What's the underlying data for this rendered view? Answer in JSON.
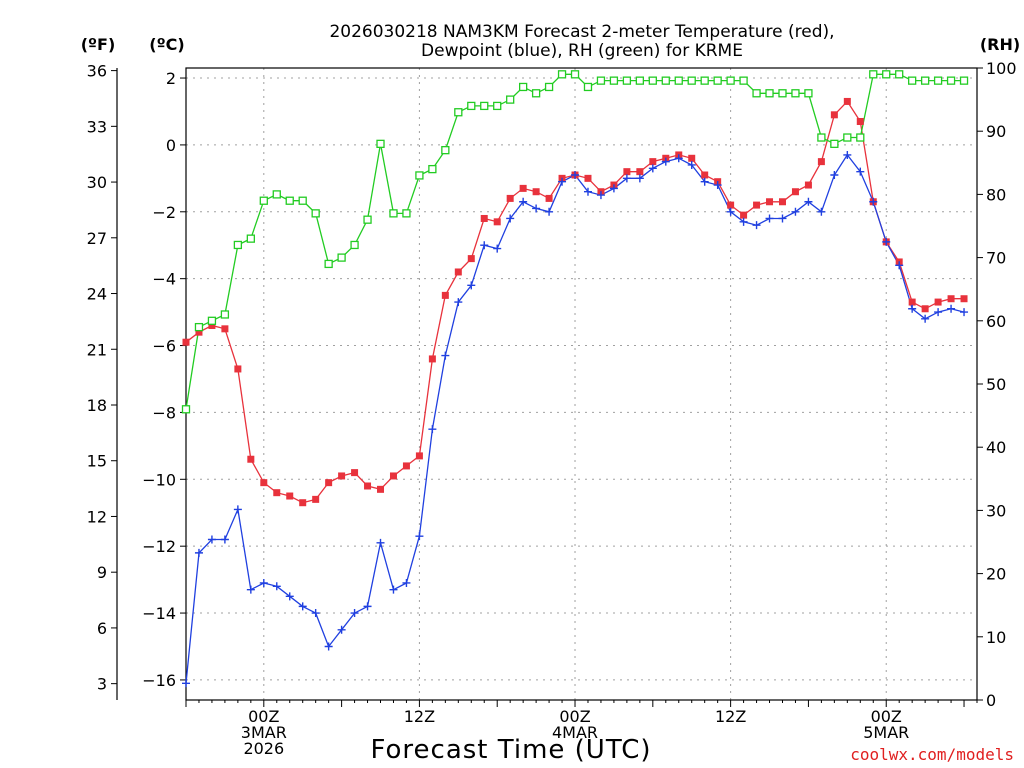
{
  "chart_data": {
    "type": "line",
    "title_line1": "2026030218 NAM3KM Forecast 2-meter Temperature (red),",
    "title_line2": "Dewpoint (blue), RH (green) for KRME",
    "xlabel": "Forecast Time (UTC)",
    "credit": "coolwx.com/models",
    "units": {
      "left_f": "(ºF)",
      "left_c": "(ºC)",
      "right": "(RH)"
    },
    "hours": {
      "start": 0,
      "end": 61
    },
    "ylim_c": [
      -16.6,
      2.3
    ],
    "ylim_rh": [
      0,
      100
    ],
    "f_ticks": [
      3,
      6,
      9,
      12,
      15,
      18,
      21,
      24,
      27,
      30,
      33,
      36
    ],
    "c_ticks": [
      -16,
      -14,
      -12,
      -10,
      -8,
      -6,
      -4,
      -2,
      0,
      2
    ],
    "rh_ticks": [
      0,
      10,
      20,
      30,
      40,
      50,
      60,
      70,
      80,
      90,
      100
    ],
    "x_ticks": [
      {
        "hour": 6,
        "lines": [
          "00Z",
          "3MAR",
          "2026"
        ]
      },
      {
        "hour": 18,
        "lines": [
          "12Z"
        ]
      },
      {
        "hour": 30,
        "lines": [
          "00Z",
          "4MAR"
        ]
      },
      {
        "hour": 42,
        "lines": [
          "12Z"
        ]
      },
      {
        "hour": 54,
        "lines": [
          "00Z",
          "5MAR"
        ]
      }
    ],
    "series": [
      {
        "name": "Temperature",
        "unit": "C",
        "color": "#e8323c",
        "marker": "filled-square",
        "values": [
          -5.9,
          -5.6,
          -5.4,
          -5.5,
          -6.7,
          -9.4,
          -10.1,
          -10.4,
          -10.5,
          -10.7,
          -10.6,
          -10.1,
          -9.9,
          -9.8,
          -10.2,
          -10.3,
          -9.9,
          -9.6,
          -9.3,
          -6.4,
          -4.5,
          -3.8,
          -3.4,
          -2.2,
          -2.3,
          -1.6,
          -1.3,
          -1.4,
          -1.6,
          -1.0,
          -0.9,
          -1.0,
          -1.4,
          -1.2,
          -0.8,
          -0.8,
          -0.5,
          -0.4,
          -0.3,
          -0.4,
          -0.9,
          -1.1,
          -1.8,
          -2.1,
          -1.8,
          -1.7,
          -1.7,
          -1.4,
          -1.2,
          -0.5,
          0.9,
          1.3,
          0.7,
          -1.7,
          -2.9,
          -3.5,
          -4.7,
          -4.9,
          -4.7,
          -4.6,
          -4.6
        ]
      },
      {
        "name": "Dewpoint",
        "unit": "C",
        "color": "#2040e0",
        "marker": "plus",
        "values": [
          -16.1,
          -12.2,
          -11.8,
          -11.8,
          -10.9,
          -13.3,
          -13.1,
          -13.2,
          -13.5,
          -13.8,
          -14.0,
          -15.0,
          -14.5,
          -14.0,
          -13.8,
          -11.9,
          -13.3,
          -13.1,
          -11.7,
          -8.5,
          -6.3,
          -4.7,
          -4.2,
          -3.0,
          -3.1,
          -2.2,
          -1.7,
          -1.9,
          -2.0,
          -1.1,
          -0.9,
          -1.4,
          -1.5,
          -1.3,
          -1.0,
          -1.0,
          -0.7,
          -0.5,
          -0.4,
          -0.6,
          -1.1,
          -1.2,
          -2.0,
          -2.3,
          -2.4,
          -2.2,
          -2.2,
          -2.0,
          -1.7,
          -2.0,
          -0.9,
          -0.3,
          -0.8,
          -1.7,
          -2.9,
          -3.6,
          -4.9,
          -5.2,
          -5.0,
          -4.9,
          -5.0
        ]
      },
      {
        "name": "RH",
        "unit": "%",
        "color": "#22cc22",
        "marker": "open-square",
        "values": [
          46,
          59,
          60,
          61,
          72,
          73,
          79,
          80,
          79,
          79,
          77,
          69,
          70,
          72,
          76,
          88,
          77,
          77,
          83,
          84,
          87,
          93,
          94,
          94,
          94,
          95,
          97,
          96,
          97,
          99,
          99,
          97,
          98,
          98,
          98,
          98,
          98,
          98,
          98,
          98,
          98,
          98,
          98,
          98,
          96,
          96,
          96,
          96,
          96,
          89,
          88,
          89,
          89,
          99,
          99,
          99,
          98,
          98,
          98,
          98,
          98
        ]
      }
    ]
  }
}
